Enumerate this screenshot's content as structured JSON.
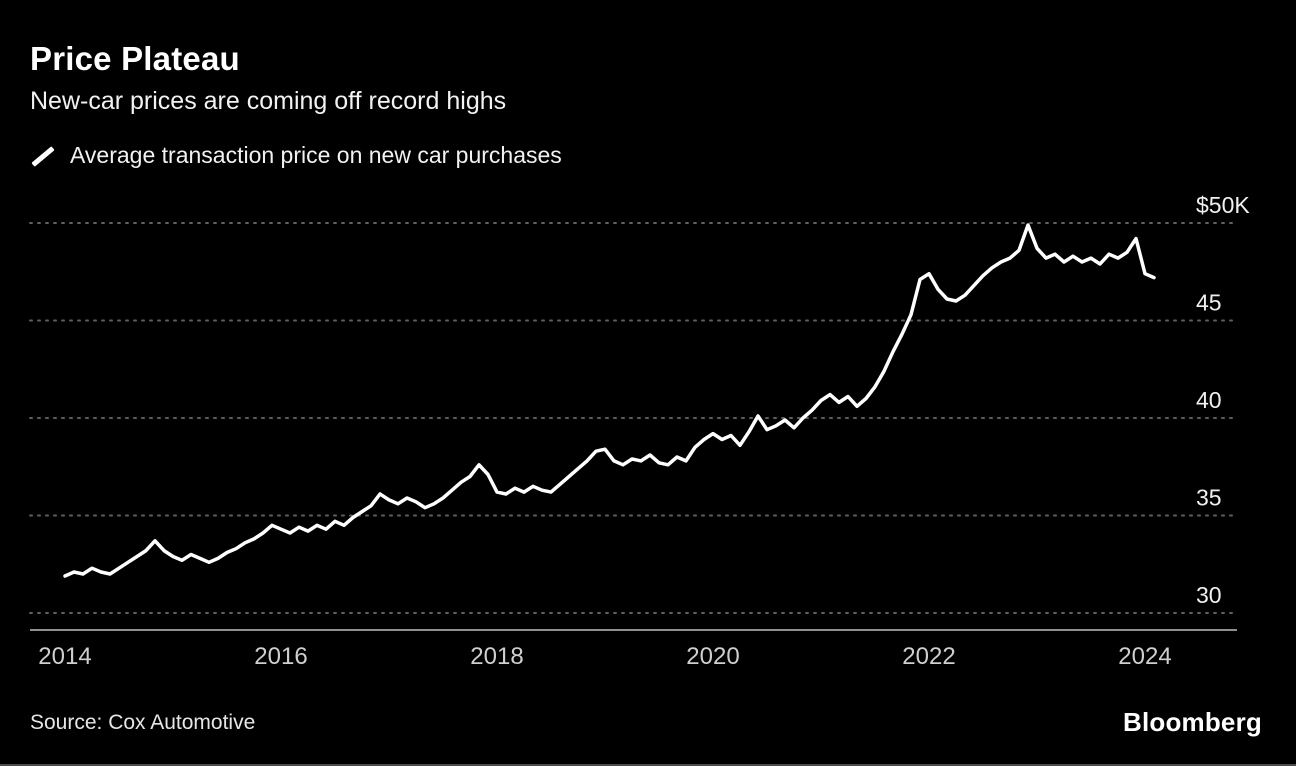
{
  "header": {
    "title": "Price Plateau",
    "subtitle": "New-car prices are coming off record highs"
  },
  "legend": {
    "label": "Average transaction price on new car purchases",
    "swatch_color": "#ffffff"
  },
  "chart_data": {
    "type": "line",
    "title": "Price Plateau",
    "series_name": "Average transaction price on new car purchases",
    "unit": "USD thousands",
    "x_start_year": 2014,
    "x_interval": "monthly",
    "values": [
      31.9,
      32.1,
      32.0,
      32.3,
      32.1,
      32.0,
      32.3,
      32.6,
      32.9,
      33.2,
      33.7,
      33.2,
      32.9,
      32.7,
      33.0,
      32.8,
      32.6,
      32.8,
      33.1,
      33.3,
      33.6,
      33.8,
      34.1,
      34.5,
      34.3,
      34.1,
      34.4,
      34.2,
      34.5,
      34.3,
      34.7,
      34.5,
      34.9,
      35.2,
      35.5,
      36.1,
      35.8,
      35.6,
      35.9,
      35.7,
      35.4,
      35.6,
      35.9,
      36.3,
      36.7,
      37.0,
      37.6,
      37.1,
      36.2,
      36.1,
      36.4,
      36.2,
      36.5,
      36.3,
      36.2,
      36.6,
      37.0,
      37.4,
      37.8,
      38.3,
      38.4,
      37.8,
      37.6,
      37.9,
      37.8,
      38.1,
      37.7,
      37.6,
      38.0,
      37.8,
      38.5,
      38.9,
      39.2,
      38.9,
      39.1,
      38.6,
      39.3,
      40.1,
      39.4,
      39.6,
      39.9,
      39.5,
      40.0,
      40.4,
      40.9,
      41.2,
      40.8,
      41.1,
      40.6,
      41.0,
      41.6,
      42.4,
      43.4,
      44.3,
      45.3,
      47.1,
      47.4,
      46.6,
      46.1,
      46.0,
      46.3,
      46.8,
      47.3,
      47.7,
      48.0,
      48.2,
      48.6,
      49.9,
      48.7,
      48.2,
      48.4,
      48.0,
      48.3,
      48.0,
      48.2,
      47.9,
      48.4,
      48.2,
      48.5,
      49.2,
      47.4,
      47.2
    ],
    "ylim": [
      29.5,
      50.8
    ],
    "yticks": [
      30,
      35,
      40,
      45,
      50
    ],
    "ytick_labels": [
      "30",
      "35",
      "40",
      "45",
      "$50K"
    ],
    "xticks": [
      2014,
      2016,
      2018,
      2020,
      2022,
      2024
    ],
    "xtick_labels": [
      "2014",
      "2016",
      "2018",
      "2020",
      "2022",
      "2024"
    ],
    "grid": "horizontal-dotted",
    "legend_position": "top-left",
    "line_color": "#ffffff",
    "grid_color": "#5f5f5f",
    "axis_color": "#8f8f8f",
    "background": "#000000"
  },
  "footer": {
    "source": "Source: Cox Automotive",
    "brand": "Bloomberg"
  }
}
